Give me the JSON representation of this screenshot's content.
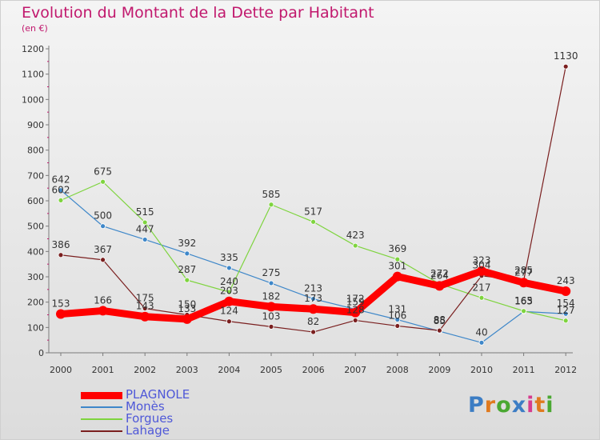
{
  "header": {
    "title": "Evolution du Montant de la Dette par Habitant",
    "subtitle": "(en €)"
  },
  "brand": {
    "text": "Proxiti",
    "letter_colors": [
      "#3c7dc4",
      "#e07a1f",
      "#4aa832",
      "#3c7dc4",
      "#d63c8e",
      "#e07a1f",
      "#4aa832"
    ]
  },
  "chart_data": {
    "type": "line",
    "title": "Evolution du Montant de la Dette par Habitant",
    "subtitle": "(en €)",
    "xlabel": "",
    "ylabel": "",
    "ylim": [
      0,
      1200
    ],
    "yticks": [
      0,
      100,
      200,
      300,
      400,
      500,
      600,
      700,
      800,
      900,
      1000,
      1100,
      1200
    ],
    "x": [
      "2000",
      "2001",
      "2002",
      "2003",
      "2004",
      "2005",
      "2006",
      "2007",
      "2008",
      "2009",
      "2010",
      "2011",
      "2012"
    ],
    "grid": false,
    "legend_position": "bottom-left",
    "series": [
      {
        "name": "PLAGNOLE",
        "color": "#ff0000",
        "values": [
          153,
          166,
          143,
          133,
          203,
          182,
          173,
          159,
          301,
          264,
          323,
          277,
          243
        ],
        "labels": [
          "153",
          "166",
          "143",
          "133",
          "203",
          "182",
          "173",
          "159",
          "301",
          "264",
          "323",
          "277",
          "243"
        ]
      },
      {
        "name": "Monès",
        "color": "#3e87c9",
        "values": [
          642,
          500,
          447,
          392,
          335,
          275,
          213,
          172,
          131,
          85,
          40,
          163,
          154
        ],
        "labels": [
          "642",
          "500",
          "447",
          "392",
          "335",
          "275",
          "213",
          "172",
          "131",
          "85",
          "40",
          "163",
          "154"
        ]
      },
      {
        "name": "Forgues",
        "color": "#7ed43e",
        "values": [
          602,
          675,
          515,
          287,
          240,
          585,
          517,
          423,
          369,
          272,
          217,
          165,
          127
        ],
        "labels": [
          "602",
          "675",
          "515",
          "287",
          "240",
          "585",
          "517",
          "423",
          "369",
          "272",
          "217",
          "165",
          "127"
        ]
      },
      {
        "name": "Lahage",
        "color": "#7a1f1f",
        "values": [
          386,
          367,
          175,
          150,
          124,
          103,
          82,
          128,
          106,
          88,
          304,
          285,
          1130
        ],
        "labels": [
          "386",
          "367",
          "175",
          "150",
          "124",
          "103",
          "82",
          "128",
          "106",
          "88",
          "304",
          "285",
          "1130"
        ]
      }
    ]
  }
}
